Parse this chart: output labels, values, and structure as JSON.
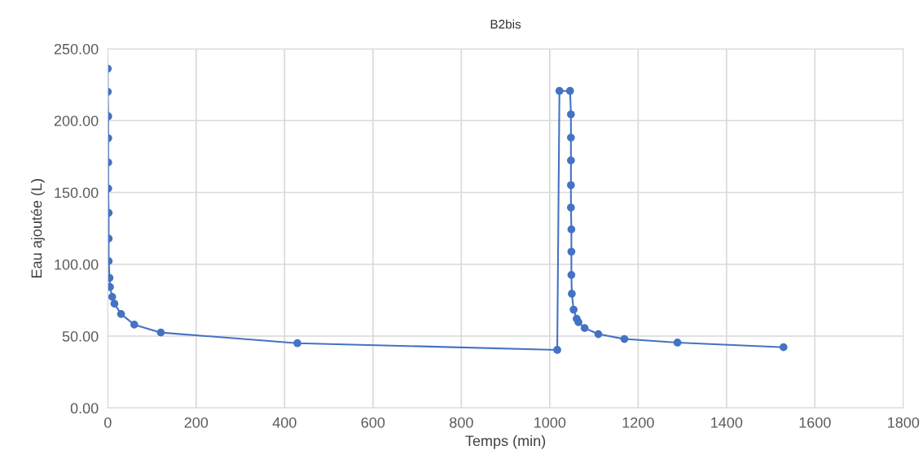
{
  "chart_data": {
    "type": "line",
    "title": "B2bis",
    "xlabel": "Temps (min)",
    "ylabel": "Eau ajoutée (L)",
    "series": [
      {
        "color": "#4472c4",
        "x": [
          0,
          0,
          1,
          1,
          1,
          1,
          2,
          2,
          2,
          4,
          5,
          10,
          15,
          30,
          60,
          120,
          429,
          1017,
          1022,
          1046,
          1048,
          1048,
          1048,
          1048,
          1048,
          1049,
          1049,
          1049,
          1050,
          1054,
          1061,
          1065,
          1079,
          1110,
          1169,
          1289,
          1529
        ],
        "values": [
          236.2,
          220.1,
          203.0,
          187.8,
          170.9,
          152.8,
          135.8,
          117.9,
          102.2,
          90.5,
          84.2,
          77.3,
          72.6,
          65.4,
          58.0,
          52.5,
          45.1,
          40.4,
          220.7,
          220.7,
          204.4,
          188.2,
          172.3,
          155.1,
          139.5,
          124.3,
          108.8,
          92.6,
          79.5,
          68.4,
          62.1,
          59.7,
          55.6,
          51.4,
          48.0,
          45.5,
          42.3
        ]
      }
    ],
    "xlim": [
      0,
      1800
    ],
    "xticks": [
      0,
      200,
      400,
      600,
      800,
      1000,
      1200,
      1400,
      1600,
      1800
    ],
    "ylim": [
      0,
      250
    ],
    "yticks": [
      {
        "value": 0,
        "label": "0.00"
      },
      {
        "value": 50,
        "label": "50.00"
      },
      {
        "value": 100,
        "label": "100.00"
      },
      {
        "value": 150,
        "label": "150.00"
      },
      {
        "value": 200,
        "label": "200.00"
      },
      {
        "value": 250,
        "label": "250.00"
      }
    ],
    "grid": true,
    "marker": "circle",
    "line_style": "solid"
  }
}
